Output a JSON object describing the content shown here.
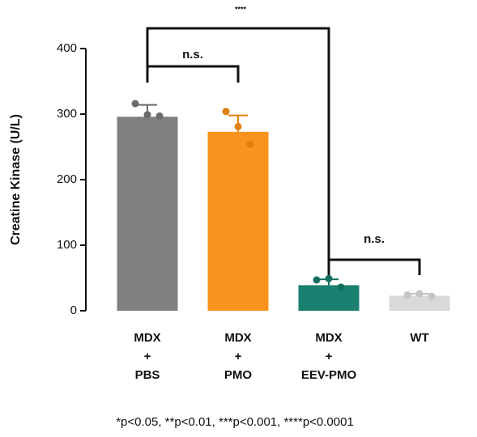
{
  "chart_data": {
    "type": "bar",
    "ylabel": "Creatine Kinase (U/L)",
    "categories": [
      [
        "MDX",
        "+",
        "PBS"
      ],
      [
        "MDX",
        "+",
        "PMO"
      ],
      [
        "MDX",
        "+",
        "EEV-PMO"
      ],
      [
        "WT"
      ]
    ],
    "values": [
      296,
      273,
      39,
      23
    ],
    "errors": [
      18,
      25,
      9,
      3
    ],
    "points": [
      [
        316,
        299,
        297
      ],
      [
        304,
        281,
        254
      ],
      [
        47,
        49,
        36
      ],
      [
        24,
        26,
        22
      ]
    ],
    "colors": [
      "#808080",
      "#f7931e",
      "#1a8070",
      "#d9d9d9"
    ],
    "point_colors": [
      "#6a6a6a",
      "#e07f10",
      "#137060",
      "#c4c4c4"
    ],
    "ylim": [
      0,
      400
    ],
    "yticks": [
      0,
      100,
      200,
      300,
      400
    ],
    "brackets": [
      {
        "label": "****",
        "from": 0,
        "to": 2
      },
      {
        "label": "n.s.",
        "from": 0,
        "to": 1
      },
      {
        "label": "n.s.",
        "from": 2,
        "to": 3
      }
    ],
    "footnote": "*p<0.05, **p<0.01, ***p<0.001, ****p<0.0001"
  }
}
